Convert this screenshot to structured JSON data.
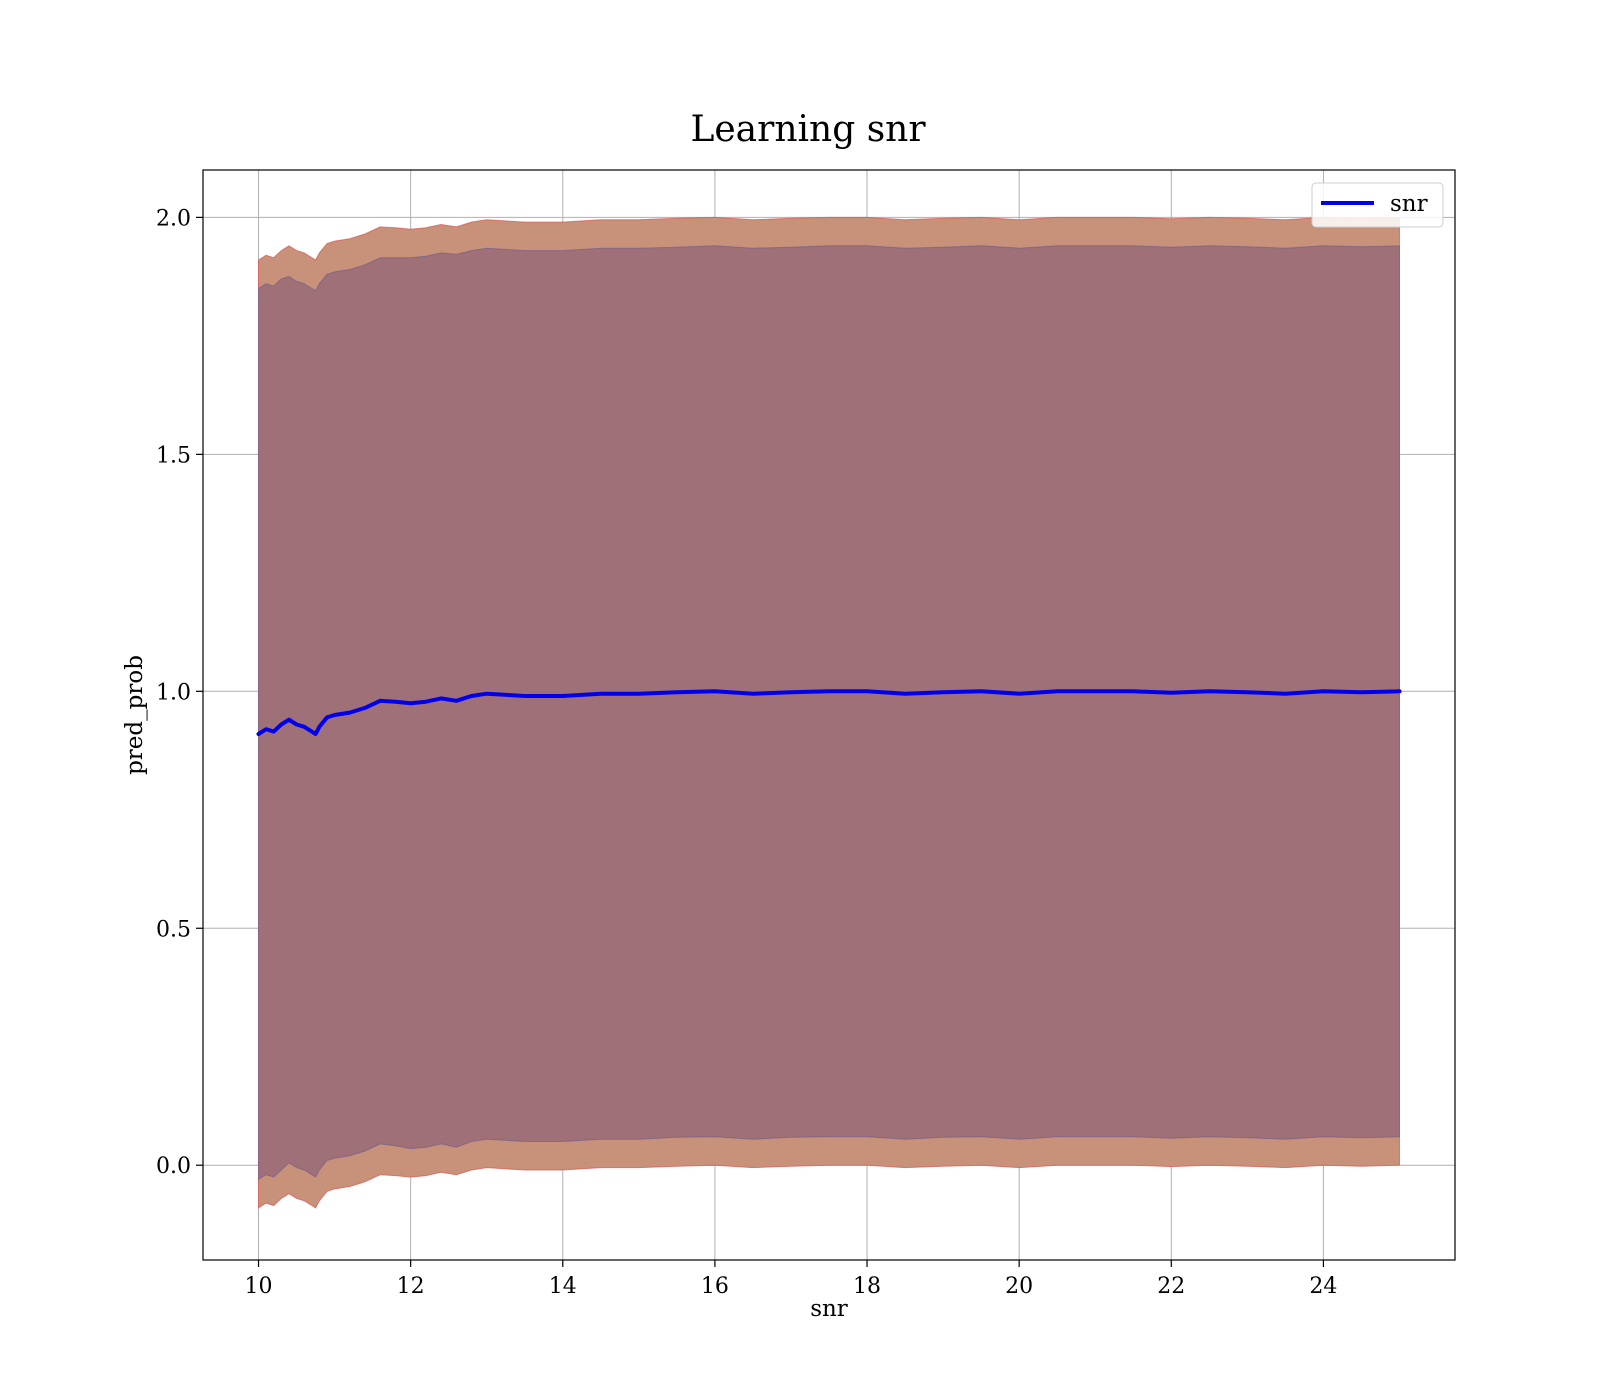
{
  "chart_data": {
    "type": "line",
    "title": "Learning snr",
    "xlabel": "snr",
    "ylabel": "pred_prob",
    "xlim": [
      9.27,
      25.73
    ],
    "ylim": [
      -0.2,
      2.1
    ],
    "xticks": [
      10,
      12,
      14,
      16,
      18,
      20,
      22,
      24
    ],
    "xtick_labels": [
      "10",
      "12",
      "14",
      "16",
      "18",
      "20",
      "22",
      "24"
    ],
    "yticks": [
      0.0,
      0.5,
      1.0,
      1.5,
      2.0
    ],
    "ytick_labels": [
      "0.0",
      "0.5",
      "1.0",
      "1.5",
      "2.0"
    ],
    "grid": true,
    "legend": {
      "location": "upper right",
      "entries": [
        "snr"
      ]
    },
    "colors": {
      "line": "#0000ee",
      "outer_band": "#c8917a",
      "outer_band_edge": "#d9534f",
      "inner_band": "#a07078",
      "inner_band_edge": "#6a5a8a"
    },
    "series": [
      {
        "name": "snr",
        "x": [
          10.0,
          10.1,
          10.2,
          10.3,
          10.4,
          10.5,
          10.6,
          10.7,
          10.75,
          10.8,
          10.9,
          11.0,
          11.2,
          11.4,
          11.6,
          11.8,
          12.0,
          12.2,
          12.4,
          12.6,
          12.8,
          13.0,
          13.5,
          14.0,
          14.5,
          15.0,
          15.5,
          16.0,
          16.5,
          17.0,
          17.5,
          18.0,
          18.5,
          19.0,
          19.5,
          20.0,
          20.5,
          21.0,
          21.5,
          22.0,
          22.5,
          23.0,
          23.5,
          24.0,
          24.5,
          25.0
        ],
        "y": [
          0.91,
          0.92,
          0.915,
          0.93,
          0.94,
          0.93,
          0.925,
          0.915,
          0.91,
          0.925,
          0.945,
          0.95,
          0.955,
          0.965,
          0.98,
          0.978,
          0.975,
          0.978,
          0.985,
          0.98,
          0.99,
          0.995,
          0.99,
          0.99,
          0.995,
          0.995,
          0.998,
          1.0,
          0.995,
          0.998,
          1.0,
          1.0,
          0.995,
          0.998,
          1.0,
          0.995,
          1.0,
          1.0,
          1.0,
          0.997,
          1.0,
          0.998,
          0.995,
          1.0,
          0.998,
          1.0
        ],
        "band_2std_upper": [
          1.91,
          1.92,
          1.915,
          1.93,
          1.94,
          1.93,
          1.925,
          1.915,
          1.91,
          1.925,
          1.945,
          1.95,
          1.955,
          1.965,
          1.98,
          1.978,
          1.975,
          1.978,
          1.985,
          1.98,
          1.99,
          1.995,
          1.99,
          1.99,
          1.995,
          1.995,
          1.998,
          2.0,
          1.995,
          1.998,
          2.0,
          2.0,
          1.995,
          1.998,
          2.0,
          1.995,
          2.0,
          2.0,
          2.0,
          1.997,
          2.0,
          1.998,
          1.995,
          2.0,
          1.998,
          2.0
        ],
        "band_2std_lower": [
          -0.09,
          -0.08,
          -0.085,
          -0.07,
          -0.06,
          -0.07,
          -0.075,
          -0.085,
          -0.09,
          -0.075,
          -0.055,
          -0.05,
          -0.045,
          -0.035,
          -0.02,
          -0.022,
          -0.025,
          -0.022,
          -0.015,
          -0.02,
          -0.01,
          -0.005,
          -0.01,
          -0.01,
          -0.005,
          -0.005,
          -0.002,
          0.0,
          -0.005,
          -0.002,
          0.0,
          0.0,
          -0.005,
          -0.002,
          0.0,
          -0.005,
          0.0,
          0.0,
          0.0,
          -0.003,
          0.0,
          -0.002,
          -0.005,
          0.0,
          -0.002,
          0.0
        ],
        "band_1std_upper": [
          1.85,
          1.86,
          1.855,
          1.87,
          1.875,
          1.865,
          1.86,
          1.85,
          1.845,
          1.86,
          1.88,
          1.885,
          1.89,
          1.9,
          1.915,
          1.915,
          1.915,
          1.918,
          1.925,
          1.922,
          1.93,
          1.935,
          1.93,
          1.93,
          1.935,
          1.935,
          1.937,
          1.94,
          1.935,
          1.937,
          1.94,
          1.94,
          1.935,
          1.937,
          1.94,
          1.935,
          1.94,
          1.94,
          1.94,
          1.937,
          1.94,
          1.938,
          1.935,
          1.94,
          1.938,
          1.94
        ],
        "band_1std_lower": [
          -0.03,
          -0.02,
          -0.025,
          -0.01,
          0.005,
          -0.005,
          -0.01,
          -0.02,
          -0.025,
          -0.01,
          0.01,
          0.015,
          0.02,
          0.03,
          0.045,
          0.041,
          0.035,
          0.038,
          0.045,
          0.038,
          0.05,
          0.055,
          0.05,
          0.05,
          0.055,
          0.055,
          0.059,
          0.06,
          0.055,
          0.059,
          0.06,
          0.06,
          0.055,
          0.059,
          0.06,
          0.055,
          0.06,
          0.06,
          0.06,
          0.057,
          0.06,
          0.058,
          0.055,
          0.06,
          0.058,
          0.06
        ]
      }
    ]
  }
}
